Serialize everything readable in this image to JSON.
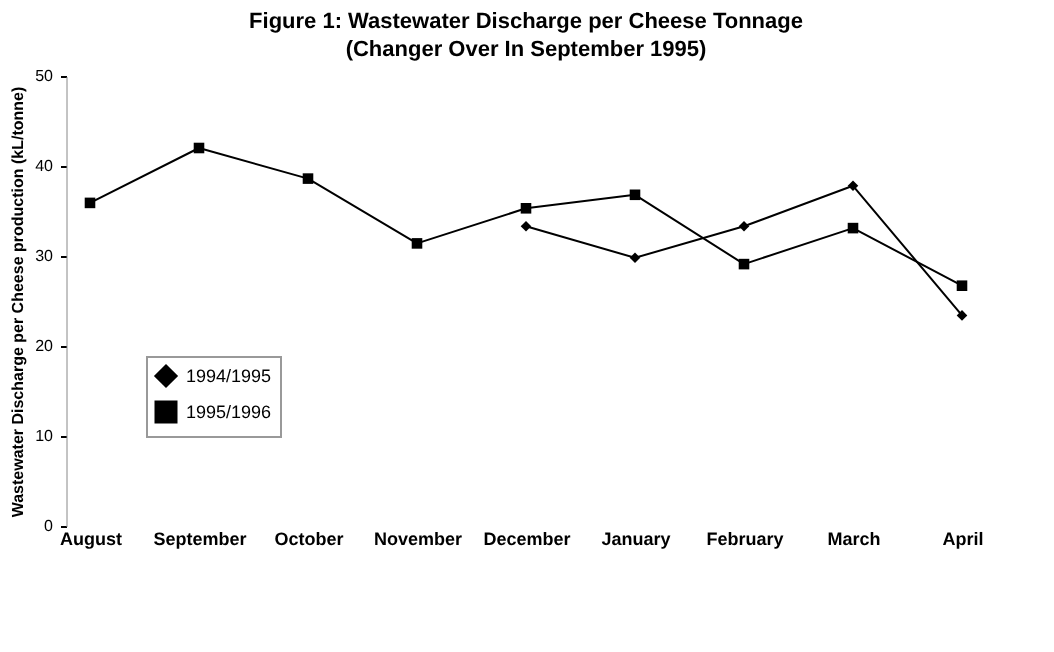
{
  "chart_data": {
    "type": "line",
    "title": "Figure 1: Wastewater Discharge per Cheese Tonnage",
    "subtitle": "(Changer Over In September 1995)",
    "ylabel": "Wastewater Discharge per Cheese production (kL/tonne)",
    "categories": [
      "August",
      "September",
      "October",
      "November",
      "December",
      "January",
      "February",
      "March",
      "April"
    ],
    "series": [
      {
        "name": "1994/1995",
        "color": "#000000",
        "marker": "diamond",
        "values": [
          null,
          null,
          null,
          null,
          33.3,
          29.8,
          33.3,
          37.8,
          23.4
        ]
      },
      {
        "name": "1995/1996",
        "color": "#000000",
        "marker": "square",
        "values": [
          35.9,
          42,
          38.6,
          31.4,
          35.3,
          36.8,
          29.1,
          33.1,
          26.7
        ]
      }
    ],
    "ylim": [
      0,
      50
    ],
    "yticks": [
      0,
      10,
      20,
      30,
      40,
      50
    ],
    "grid": false,
    "legend": "left",
    "line_style": "solid"
  }
}
